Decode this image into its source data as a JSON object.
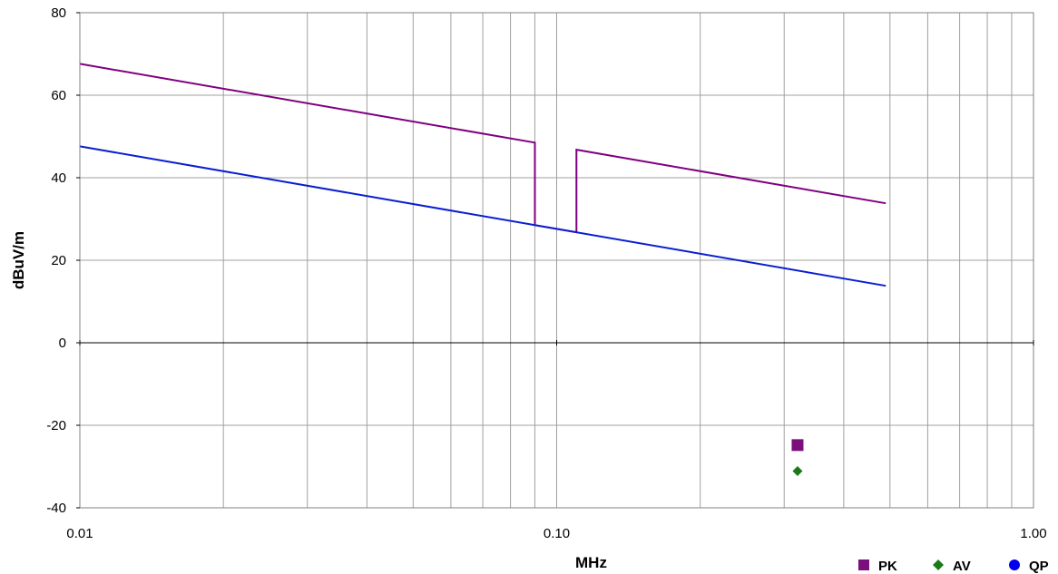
{
  "chart_data": {
    "type": "line",
    "title": "",
    "xlabel": "MHz",
    "ylabel": "dBuV/m",
    "x_scale": "log",
    "xlim": [
      0.01,
      1.0
    ],
    "ylim": [
      -40,
      80
    ],
    "x_ticks": [
      {
        "value": 0.01,
        "label": "0.01"
      },
      {
        "value": 0.1,
        "label": "0.10"
      },
      {
        "value": 1.0,
        "label": "1.00"
      }
    ],
    "y_ticks": [
      -40,
      -20,
      0,
      20,
      40,
      60,
      80
    ],
    "grid": true,
    "legend": {
      "position": "bottom-right",
      "entries": [
        {
          "name": "PK",
          "marker": "square",
          "color": "#7b0f7b"
        },
        {
          "name": "AV",
          "marker": "diamond",
          "color": "#1a7a1a"
        },
        {
          "name": "QP",
          "marker": "circle",
          "color": "#0000ee"
        }
      ]
    },
    "limit_lines": [
      {
        "color": "#800080",
        "points": [
          [
            0.01,
            67.6
          ],
          [
            0.09,
            48.5
          ],
          [
            0.09,
            28.5
          ],
          [
            0.11,
            26.8
          ],
          [
            0.11,
            46.8
          ],
          [
            0.49,
            33.8
          ]
        ]
      },
      {
        "color": "#0a1fd0",
        "points": [
          [
            0.01,
            47.6
          ],
          [
            0.49,
            13.8
          ]
        ]
      }
    ],
    "series": [
      {
        "name": "PK",
        "marker": "square",
        "color": "#7b0f7b",
        "points": [
          [
            0.32,
            -24.8
          ]
        ]
      },
      {
        "name": "AV",
        "marker": "diamond",
        "color": "#1a7a1a",
        "points": [
          [
            0.32,
            -31.1
          ]
        ]
      },
      {
        "name": "QP",
        "marker": "circle",
        "color": "#0000ee",
        "points": []
      }
    ]
  }
}
